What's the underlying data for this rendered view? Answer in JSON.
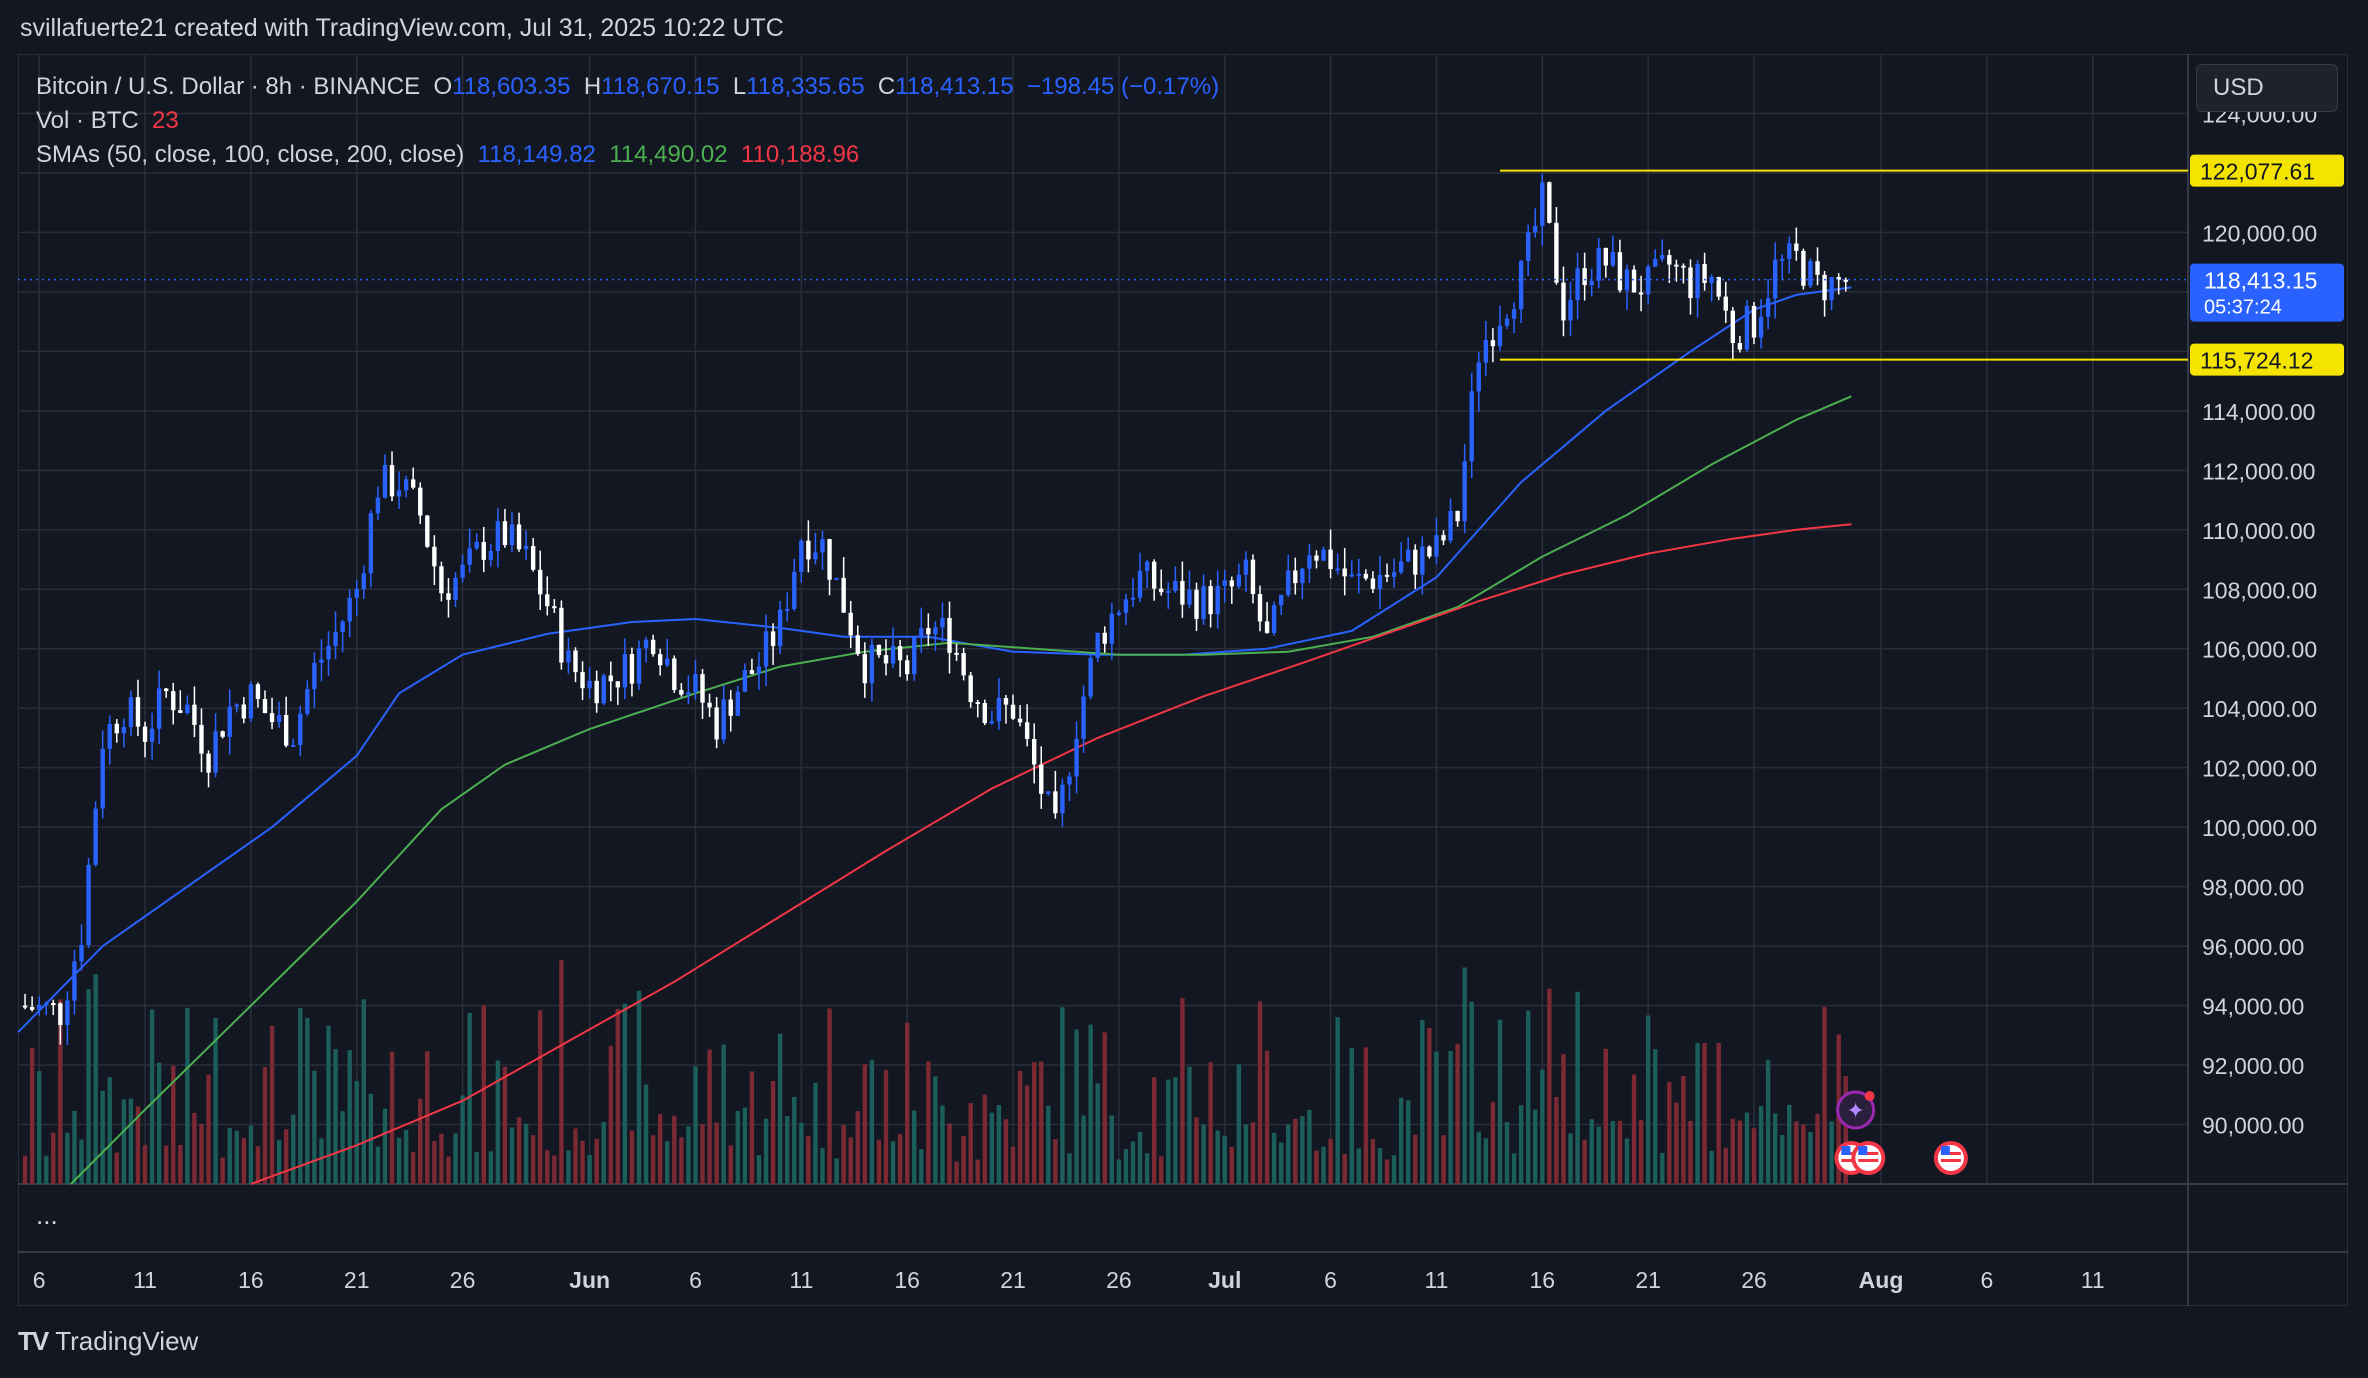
{
  "caption": "svillafuerte21 created with TradingView.com, Jul 31, 2025 10:22 UTC",
  "legend": {
    "symbol": "Bitcoin / U.S. Dollar · 8h · BINANCE",
    "o_label": "O",
    "o_value": "118,603.35",
    "h_label": "H",
    "h_value": "118,670.15",
    "l_label": "L",
    "l_value": "118,335.65",
    "c_label": "C",
    "c_value": "118,413.15",
    "change": "−198.45 (−0.17%)",
    "vol_label": "Vol · BTC",
    "vol_value": "23",
    "sma_label": "SMAs (50, close, 100, close, 200, close)",
    "sma50": "118,149.82",
    "sma100": "114,490.02",
    "sma200": "110,188.96"
  },
  "currency": "USD",
  "ellipsis": "...",
  "brand": "TradingView",
  "colors": {
    "background": "#131722",
    "grid": "#2a2e39",
    "text": "#d1d4dc",
    "up": "#2962ff",
    "down": "#ffffff",
    "vol_up": "#1b5e5b",
    "vol_down": "#7b2a33",
    "sma50": "#2962ff",
    "sma100": "#4caf50",
    "sma200": "#f23645",
    "range": "#f5e400"
  },
  "chart_data": {
    "type": "candlestick",
    "title": "Bitcoin / U.S. Dollar · 8h · BINANCE",
    "ylim": [
      88000,
      126000
    ],
    "y_ticks": [
      90000,
      92000,
      94000,
      96000,
      98000,
      100000,
      102000,
      104000,
      106000,
      108000,
      110000,
      112000,
      114000,
      116000,
      118000,
      120000,
      122000,
      124000
    ],
    "y_tick_labels": [
      "90,000.00",
      "92,000.00",
      "94,000.00",
      "96,000.00",
      "98,000.00",
      "100,000.00",
      "102,000.00",
      "104,000.00",
      "106,000.00",
      "108,000.00",
      "110,000.00",
      "112,000.00",
      "114,000.00",
      "116,000.00",
      "118,000.00",
      "120,000.00",
      "122,000.00",
      "124,000.00"
    ],
    "x_ticks": [
      "6",
      "11",
      "16",
      "21",
      "26",
      "Jun",
      "6",
      "11",
      "16",
      "21",
      "26",
      "Jul",
      "6",
      "11",
      "16",
      "21",
      "26",
      "Aug",
      "6",
      "11"
    ],
    "x_tick_days": [
      0,
      5,
      10,
      15,
      20,
      26,
      31,
      36,
      41,
      46,
      51,
      56,
      61,
      66,
      71,
      76,
      81,
      87,
      92,
      97
    ],
    "x_range_days": [
      -1,
      101.5
    ],
    "last_price": 118413.15,
    "last_price_label": "118,413.15",
    "countdown": "05:37:24",
    "range_high": 122077.61,
    "range_high_label": "122,077.61",
    "range_low": 115724.12,
    "range_low_label": "115,724.12",
    "range_start_day": 69,
    "close_points": [
      [
        -1,
        94000
      ],
      [
        1,
        93800
      ],
      [
        2,
        96500
      ],
      [
        3,
        103000
      ],
      [
        4,
        104000
      ],
      [
        5,
        103200
      ],
      [
        6,
        104500
      ],
      [
        7,
        104000
      ],
      [
        8,
        102500
      ],
      [
        9,
        104000
      ],
      [
        10,
        104400
      ],
      [
        11,
        103600
      ],
      [
        12,
        103200
      ],
      [
        13,
        105300
      ],
      [
        14,
        106500
      ],
      [
        15,
        108000
      ],
      [
        16,
        111500
      ],
      [
        17,
        111600
      ],
      [
        18,
        110500
      ],
      [
        19,
        108000
      ],
      [
        20,
        108500
      ],
      [
        21,
        109500
      ],
      [
        22,
        109800
      ],
      [
        23,
        109000
      ],
      [
        24,
        107500
      ],
      [
        25,
        105500
      ],
      [
        26,
        104800
      ],
      [
        27,
        105000
      ],
      [
        28,
        105500
      ],
      [
        29,
        106500
      ],
      [
        30,
        105200
      ],
      [
        31,
        104600
      ],
      [
        32,
        103500
      ],
      [
        33,
        104700
      ],
      [
        34,
        105500
      ],
      [
        35,
        106800
      ],
      [
        36,
        109800
      ],
      [
        37,
        109500
      ],
      [
        38,
        107500
      ],
      [
        39,
        105500
      ],
      [
        40,
        105500
      ],
      [
        41,
        105300
      ],
      [
        42,
        106700
      ],
      [
        43,
        106500
      ],
      [
        44,
        104700
      ],
      [
        45,
        103800
      ],
      [
        46,
        104000
      ],
      [
        47,
        102000
      ],
      [
        48,
        99800
      ],
      [
        49,
        103500
      ],
      [
        50,
        106300
      ],
      [
        51,
        107500
      ],
      [
        52,
        108400
      ],
      [
        53,
        108000
      ],
      [
        54,
        107800
      ],
      [
        55,
        107600
      ],
      [
        56,
        107800
      ],
      [
        57,
        108400
      ],
      [
        58,
        106200
      ],
      [
        59,
        108000
      ],
      [
        60,
        109500
      ],
      [
        61,
        109000
      ],
      [
        62,
        108200
      ],
      [
        63,
        108400
      ],
      [
        64,
        108600
      ],
      [
        65,
        109000
      ],
      [
        66,
        109300
      ],
      [
        67,
        110500
      ],
      [
        68,
        116000
      ],
      [
        69,
        117300
      ],
      [
        70,
        118500
      ],
      [
        71,
        121000
      ],
      [
        72,
        117500
      ],
      [
        73,
        118800
      ],
      [
        74,
        119000
      ],
      [
        75,
        118300
      ],
      [
        76,
        118200
      ],
      [
        77,
        118900
      ],
      [
        78,
        118300
      ],
      [
        79,
        118500
      ],
      [
        80,
        116600
      ],
      [
        81,
        117000
      ],
      [
        82,
        118800
      ],
      [
        83,
        119100
      ],
      [
        84,
        118200
      ],
      [
        85,
        118300
      ],
      [
        85.6,
        118413.15
      ]
    ],
    "sma50_points": [
      [
        -1,
        93100
      ],
      [
        3,
        96000
      ],
      [
        7,
        98000
      ],
      [
        11,
        100000
      ],
      [
        15,
        102400
      ],
      [
        17,
        104500
      ],
      [
        20,
        105800
      ],
      [
        24,
        106500
      ],
      [
        28,
        106900
      ],
      [
        31,
        107000
      ],
      [
        35,
        106700
      ],
      [
        38,
        106400
      ],
      [
        42,
        106400
      ],
      [
        46,
        105900
      ],
      [
        50,
        105800
      ],
      [
        54,
        105800
      ],
      [
        58,
        106000
      ],
      [
        62,
        106600
      ],
      [
        66,
        108400
      ],
      [
        70,
        111600
      ],
      [
        74,
        114000
      ],
      [
        78,
        116000
      ],
      [
        81,
        117400
      ],
      [
        83,
        117900
      ],
      [
        85.6,
        118149.82
      ]
    ],
    "sma100_points": [
      [
        1.5,
        88000
      ],
      [
        5,
        90500
      ],
      [
        10,
        94000
      ],
      [
        15,
        97500
      ],
      [
        19,
        100600
      ],
      [
        22,
        102100
      ],
      [
        26,
        103300
      ],
      [
        31,
        104500
      ],
      [
        35,
        105400
      ],
      [
        39,
        105900
      ],
      [
        43,
        106200
      ],
      [
        47,
        106000
      ],
      [
        51,
        105800
      ],
      [
        55,
        105800
      ],
      [
        59,
        105900
      ],
      [
        63,
        106400
      ],
      [
        67,
        107400
      ],
      [
        71,
        109100
      ],
      [
        75,
        110500
      ],
      [
        79,
        112200
      ],
      [
        83,
        113700
      ],
      [
        85.6,
        114490.02
      ]
    ],
    "sma200_points": [
      [
        10,
        88000
      ],
      [
        15,
        89300
      ],
      [
        20,
        90800
      ],
      [
        25,
        92800
      ],
      [
        30,
        94800
      ],
      [
        35,
        97000
      ],
      [
        40,
        99200
      ],
      [
        45,
        101300
      ],
      [
        50,
        103000
      ],
      [
        55,
        104400
      ],
      [
        60,
        105600
      ],
      [
        64,
        106600
      ],
      [
        68,
        107600
      ],
      [
        72,
        108500
      ],
      [
        76,
        109200
      ],
      [
        80,
        109700
      ],
      [
        83,
        110000
      ],
      [
        85.6,
        110188.96
      ]
    ]
  }
}
